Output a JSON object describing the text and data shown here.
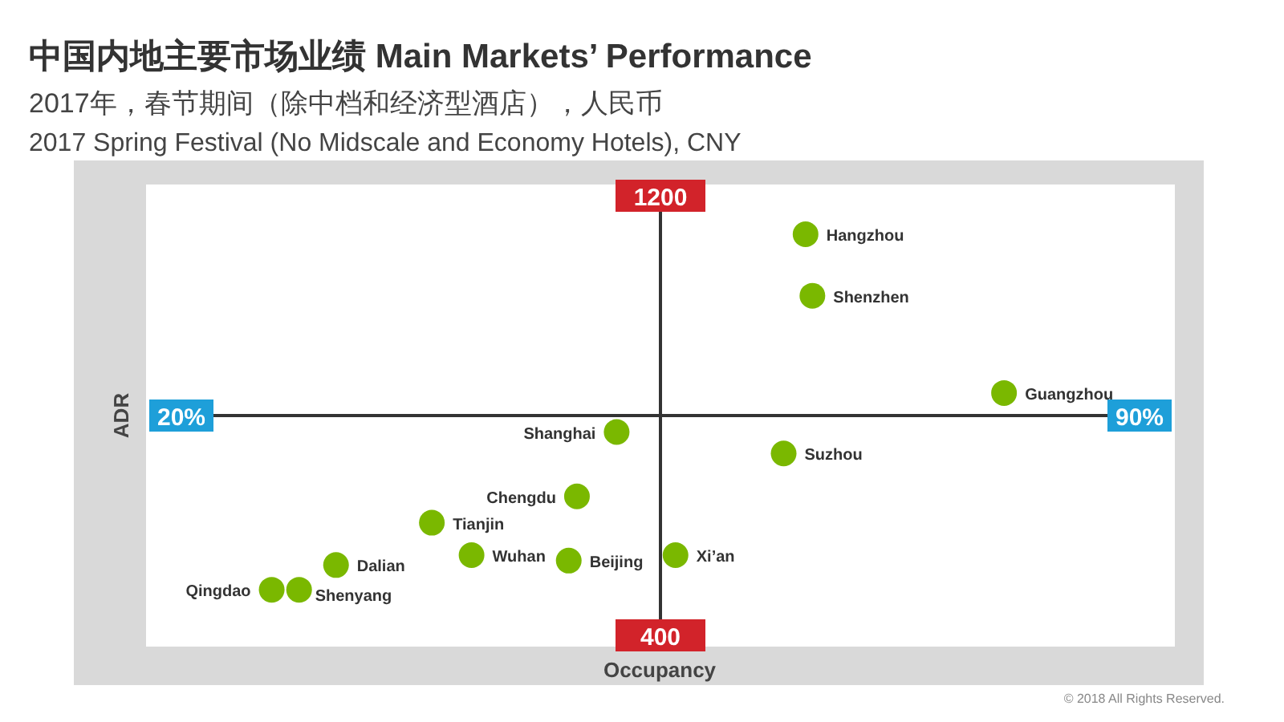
{
  "chart_data": {
    "type": "scatter",
    "title": "中国内地主要市场业绩 Main Markets’ Performance",
    "subtitle": "2017年，春节期间（除中档和经济型酒店），人民币",
    "xlabel": "Occupancy",
    "ylabel": "ADR",
    "x": [
      65.6,
      66.1,
      80.1,
      51.8,
      64.0,
      48.9,
      38.3,
      41.2,
      48.3,
      56.1,
      31.3,
      26.6,
      28.6
    ],
    "values": [
      1130,
      1018,
      841,
      770,
      731,
      653,
      605,
      546,
      536,
      546,
      528,
      483,
      483
    ],
    "color": "#7ab800",
    "marker": "circle",
    "grid": false,
    "xlim": [
      20,
      90
    ],
    "ylim": [
      400,
      1200
    ],
    "xticks": [
      {
        "value": 20,
        "label": "20%"
      },
      {
        "value": 90,
        "label": "90%"
      }
    ],
    "yticks": [
      400,
      1200
    ],
    "annotations": [
      "2017 Spring Festival (No Midscale and Economy Hotels), CNY",
      "© 2018 All Rights Reserved.",
      {
        "text": "Hangzhou",
        "x": 65.6,
        "y": 1130
      },
      {
        "text": "Shenzhen",
        "x": 66.1,
        "y": 1018
      },
      {
        "text": "Guangzhou",
        "x": 80.1,
        "y": 841
      },
      {
        "text": "Shanghai",
        "x": 51.8,
        "y": 770
      },
      {
        "text": "Suzhou",
        "x": 64.0,
        "y": 731
      },
      {
        "text": "Chengdu",
        "x": 48.9,
        "y": 653
      },
      {
        "text": "Tianjin",
        "x": 38.3,
        "y": 605
      },
      {
        "text": "Wuhan",
        "x": 41.2,
        "y": 546
      },
      {
        "text": "Beijing",
        "x": 48.3,
        "y": 536
      },
      {
        "text": "Xi’an",
        "x": 56.1,
        "y": 546
      },
      {
        "text": "Dalian",
        "x": 31.3,
        "y": 528
      },
      {
        "text": "Qingdao",
        "x": 26.6,
        "y": 483
      },
      {
        "text": "Shenyang",
        "x": 28.6,
        "y": 483
      }
    ]
  }
}
